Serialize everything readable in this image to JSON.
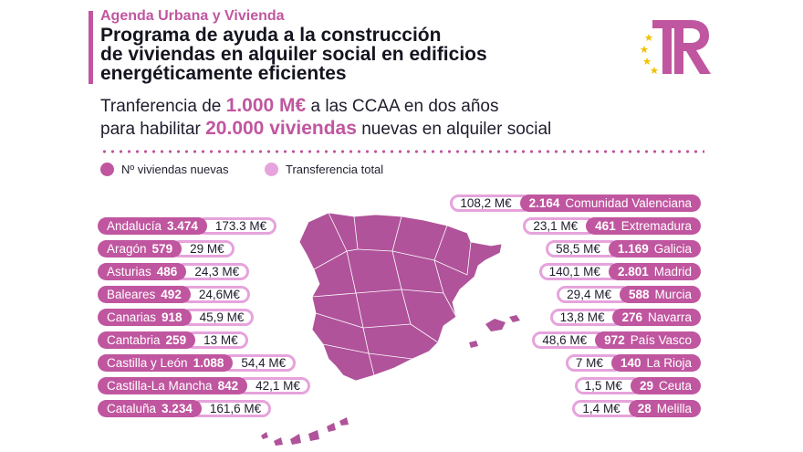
{
  "header": {
    "kicker": "Agenda Urbana y Vivienda",
    "title_lines": [
      "Programa de ayuda a la construcción",
      "de viviendas en alquiler social en edificios",
      "energéticamente eficientes"
    ]
  },
  "subtitle": {
    "line1_pre": "Tranferencia de ",
    "line1_highlight": "1.000 M€",
    "line1_post": " a las CCAA en dos años",
    "line2_pre": "para habilitar ",
    "line2_highlight": "20.000 viviendas",
    "line2_post": " nuevas en alquiler social"
  },
  "legend": {
    "viviendas": "Nº viviendas nuevas",
    "transferencia": "Transferencia total"
  },
  "logo": {
    "letters": "TR",
    "icon": "eu-stars-icon"
  },
  "colors": {
    "accent": "#c0569f",
    "accent_light": "#e6a3dc",
    "map_fill": "#b0539a"
  },
  "regions_left": [
    {
      "name": "Andalucía",
      "viviendas": "3.474",
      "transferencia": "173.3 M€"
    },
    {
      "name": "Aragón",
      "viviendas": "579",
      "transferencia": "29 M€"
    },
    {
      "name": "Asturias",
      "viviendas": "486",
      "transferencia": "24,3 M€"
    },
    {
      "name": "Baleares",
      "viviendas": "492",
      "transferencia": "24,6M€"
    },
    {
      "name": "Canarias",
      "viviendas": "918",
      "transferencia": "45,9 M€"
    },
    {
      "name": "Cantabria",
      "viviendas": "259",
      "transferencia": "13 M€"
    },
    {
      "name": "Castilla y León",
      "viviendas": "1.088",
      "transferencia": "54,4 M€"
    },
    {
      "name": "Castilla-La Mancha",
      "viviendas": "842",
      "transferencia": "42,1 M€"
    },
    {
      "name": "Cataluña",
      "viviendas": "3.234",
      "transferencia": "161,6 M€"
    }
  ],
  "regions_right": [
    {
      "name": "Comunidad Valenciana",
      "viviendas": "2.164",
      "transferencia": "108,2 M€"
    },
    {
      "name": "Extremadura",
      "viviendas": "461",
      "transferencia": "23,1 M€"
    },
    {
      "name": "Galicia",
      "viviendas": "1.169",
      "transferencia": "58,5 M€"
    },
    {
      "name": "Madrid",
      "viviendas": "2.801",
      "transferencia": "140,1 M€"
    },
    {
      "name": "Murcia",
      "viviendas": "588",
      "transferencia": "29,4 M€"
    },
    {
      "name": "Navarra",
      "viviendas": "276",
      "transferencia": "13,8 M€"
    },
    {
      "name": "País Vasco",
      "viviendas": "972",
      "transferencia": "48,6 M€"
    },
    {
      "name": "La Rioja",
      "viviendas": "140",
      "transferencia": "7 M€"
    },
    {
      "name": "Ceuta",
      "viviendas": "29",
      "transferencia": "1,5 M€"
    },
    {
      "name": "Melilla",
      "viviendas": "28",
      "transferencia": "1,4 M€"
    }
  ]
}
